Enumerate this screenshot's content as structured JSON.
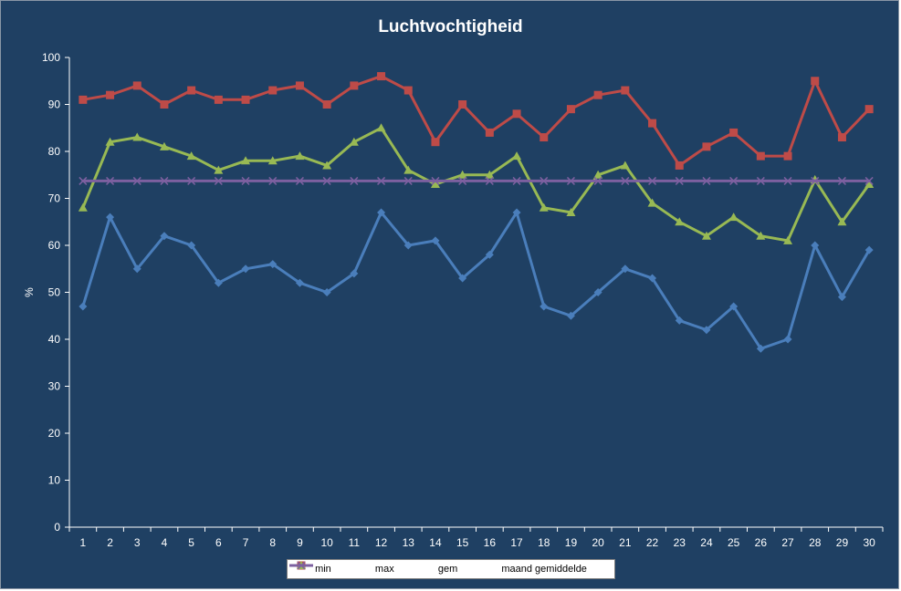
{
  "chart_data": {
    "type": "line",
    "title": "Luchtvochtigheid",
    "xlabel": "",
    "ylabel": "%",
    "categories": [
      "1",
      "2",
      "3",
      "4",
      "5",
      "6",
      "7",
      "8",
      "9",
      "10",
      "11",
      "12",
      "13",
      "14",
      "15",
      "16",
      "17",
      "18",
      "19",
      "20",
      "21",
      "22",
      "23",
      "24",
      "25",
      "26",
      "27",
      "28",
      "29",
      "30"
    ],
    "yticks": [
      "0",
      "10",
      "20",
      "30",
      "40",
      "50",
      "60",
      "70",
      "80",
      "90",
      "100"
    ],
    "ylim": [
      0,
      100
    ],
    "grid": false,
    "legend_position": "bottom",
    "series": [
      {
        "name": "min",
        "color": "#4a7ebb",
        "marker": "diamond",
        "values": [
          47,
          66,
          55,
          62,
          60,
          52,
          55,
          56,
          52,
          50,
          54,
          67,
          60,
          61,
          53,
          58,
          67,
          47,
          45,
          50,
          55,
          53,
          44,
          42,
          47,
          38,
          40,
          60,
          49,
          59
        ]
      },
      {
        "name": "max",
        "color": "#be4b48",
        "marker": "square",
        "values": [
          91,
          92,
          94,
          90,
          93,
          91,
          91,
          93,
          94,
          90,
          94,
          96,
          93,
          82,
          90,
          84,
          88,
          83,
          89,
          92,
          93,
          86,
          77,
          81,
          84,
          79,
          79,
          95,
          83,
          89
        ]
      },
      {
        "name": "gem",
        "color": "#98b954",
        "marker": "triangle",
        "values": [
          68,
          82,
          83,
          81,
          79,
          76,
          78,
          78,
          79,
          77,
          82,
          85,
          76,
          73,
          75,
          75,
          79,
          68,
          67,
          75,
          77,
          69,
          65,
          62,
          66,
          62,
          61,
          74,
          65,
          73
        ]
      },
      {
        "name": "maand gemiddelde",
        "color": "#7d60a0",
        "marker": "x",
        "values": [
          73.7,
          73.7,
          73.7,
          73.7,
          73.7,
          73.7,
          73.7,
          73.7,
          73.7,
          73.7,
          73.7,
          73.7,
          73.7,
          73.7,
          73.7,
          73.7,
          73.7,
          73.7,
          73.7,
          73.7,
          73.7,
          73.7,
          73.7,
          73.7,
          73.7,
          73.7,
          73.7,
          73.7,
          73.7,
          73.7
        ]
      }
    ]
  }
}
